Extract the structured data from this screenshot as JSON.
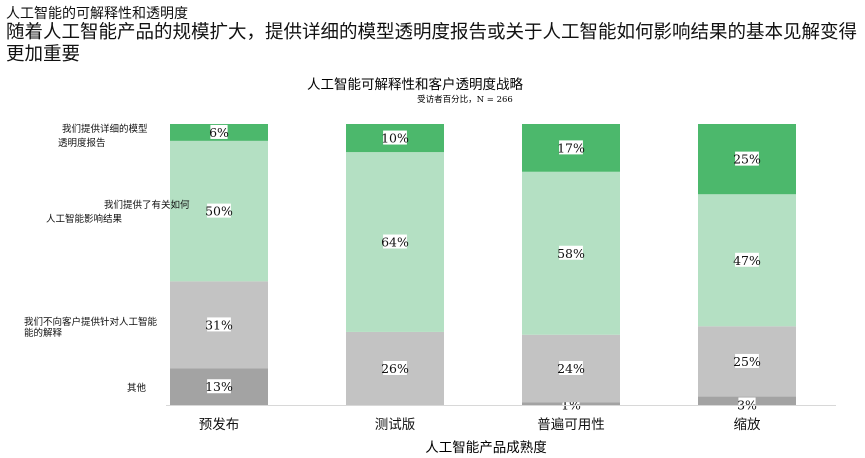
{
  "header": {
    "kicker": "人工智能的可解释性和透明度",
    "headline": "随着人工智能产品的规模扩大，提供详细的模型透明度报告或关于人工智能如何影响结果的基本见解变得更加重要"
  },
  "chart_data": {
    "type": "bar",
    "stacked": true,
    "title": "人工智能可解释性和客户透明度战略",
    "subtitle": "受访者百分比，N = 266",
    "xlabel": "人工智能产品成熟度",
    "ylabel": "",
    "ylim": [
      0,
      100
    ],
    "grid": false,
    "legend_position": "left",
    "categories": [
      "预发布",
      "测试版",
      "普遍可用性",
      "缩放"
    ],
    "series": [
      {
        "name": "其他",
        "color": "#a3a3a3",
        "values": [
          13,
          0,
          1,
          3
        ],
        "labels": [
          "13%",
          "",
          "1%",
          "3%"
        ]
      },
      {
        "name": "我们不向客户提供针对人工智能的解释",
        "color": "#c3c3c3",
        "values": [
          31,
          26,
          24,
          25
        ],
        "labels": [
          "31%",
          "26%",
          "24%",
          "25%"
        ]
      },
      {
        "name": "我们提供了有关如何人工智能影响结果",
        "color": "#b4e0c3",
        "values": [
          50,
          64,
          58,
          47
        ],
        "labels": [
          "50%",
          "64%",
          "58%",
          "47%"
        ]
      },
      {
        "name": "我们提供详细的模型透明度报告",
        "color": "#4cb86c",
        "values": [
          6,
          10,
          17,
          25
        ],
        "labels": [
          "6%",
          "10%",
          "17%",
          "25%"
        ]
      }
    ],
    "legend_lines": [
      [
        "其他"
      ],
      [
        "我们不向客户提供针对人工智能",
        "能的解释"
      ],
      [
        "我们提供了有关如何",
        "人工智能影响结果"
      ],
      [
        "我们提供详细的模型",
        "透明度报告"
      ]
    ]
  }
}
